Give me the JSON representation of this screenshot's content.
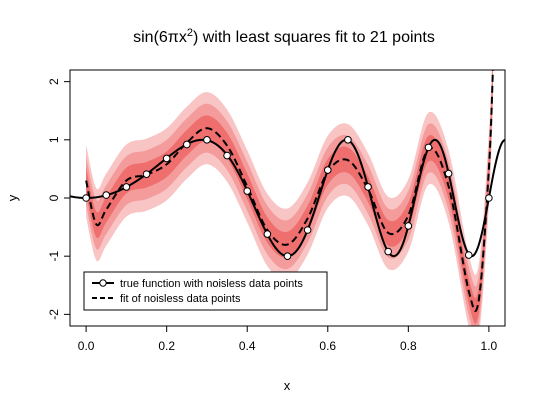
{
  "chart_data": {
    "type": "line",
    "title": {
      "pre": "sin(6",
      "pi": "π",
      "x": "x",
      "sup": "2",
      "post": ") with least squares fit to 21 points"
    },
    "xlabel": "x",
    "ylabel": "y",
    "xlim": [
      -0.04,
      1.04
    ],
    "ylim": [
      -2.2,
      2.2
    ],
    "x_ticks": [
      0.0,
      0.2,
      0.4,
      0.6,
      0.8,
      1.0
    ],
    "x_tick_labels": [
      "0.0",
      "0.2",
      "0.4",
      "0.6",
      "0.8",
      "1.0"
    ],
    "y_ticks": [
      -2,
      -1,
      0,
      1,
      2
    ],
    "y_tick_labels": [
      "-2",
      "-1",
      "0",
      "1",
      "2"
    ],
    "grid": false,
    "legend_position": "bottom-left",
    "series": [
      {
        "name": "true function with noisless data points",
        "style": "solid-line-with-open-circles",
        "function": "sin(6*pi*x^2)",
        "points": {
          "x": [
            0.0,
            0.05,
            0.1,
            0.15,
            0.2,
            0.25,
            0.3,
            0.35,
            0.4,
            0.45,
            0.5,
            0.55,
            0.6,
            0.65,
            0.7,
            0.75,
            0.8,
            0.85,
            0.9,
            0.95,
            1.0
          ],
          "y": [
            0.0,
            0.05,
            0.19,
            0.41,
            0.68,
            0.92,
            1.0,
            0.73,
            0.12,
            -0.62,
            -1.0,
            -0.55,
            0.48,
            1.0,
            0.19,
            -0.92,
            -0.48,
            0.87,
            0.42,
            -0.98,
            0.0
          ]
        }
      },
      {
        "name": "fit of noisless data points",
        "style": "dashed-line",
        "curve": {
          "x": [
            0.0,
            0.025,
            0.05,
            0.1,
            0.15,
            0.2,
            0.25,
            0.3,
            0.35,
            0.4,
            0.45,
            0.5,
            0.55,
            0.6,
            0.65,
            0.7,
            0.75,
            0.8,
            0.85,
            0.9,
            0.95,
            0.975,
            1.0,
            1.01
          ],
          "y": [
            0.3,
            -0.45,
            -0.2,
            0.3,
            0.4,
            0.58,
            0.95,
            1.2,
            0.9,
            0.2,
            -0.55,
            -0.8,
            -0.35,
            0.45,
            0.65,
            0.15,
            -0.6,
            -0.3,
            0.85,
            0.2,
            -1.6,
            -1.75,
            0.5,
            2.2
          ]
        }
      }
    ],
    "confidence_bands": {
      "colors": [
        "#f9c4c4",
        "#f49c9c",
        "#ef6e6e"
      ],
      "half_widths": [
        0.62,
        0.42,
        0.22
      ]
    },
    "colors": {
      "true_line": "#000000",
      "fit_line": "#000000",
      "markers_fill": "#ffffff"
    }
  }
}
